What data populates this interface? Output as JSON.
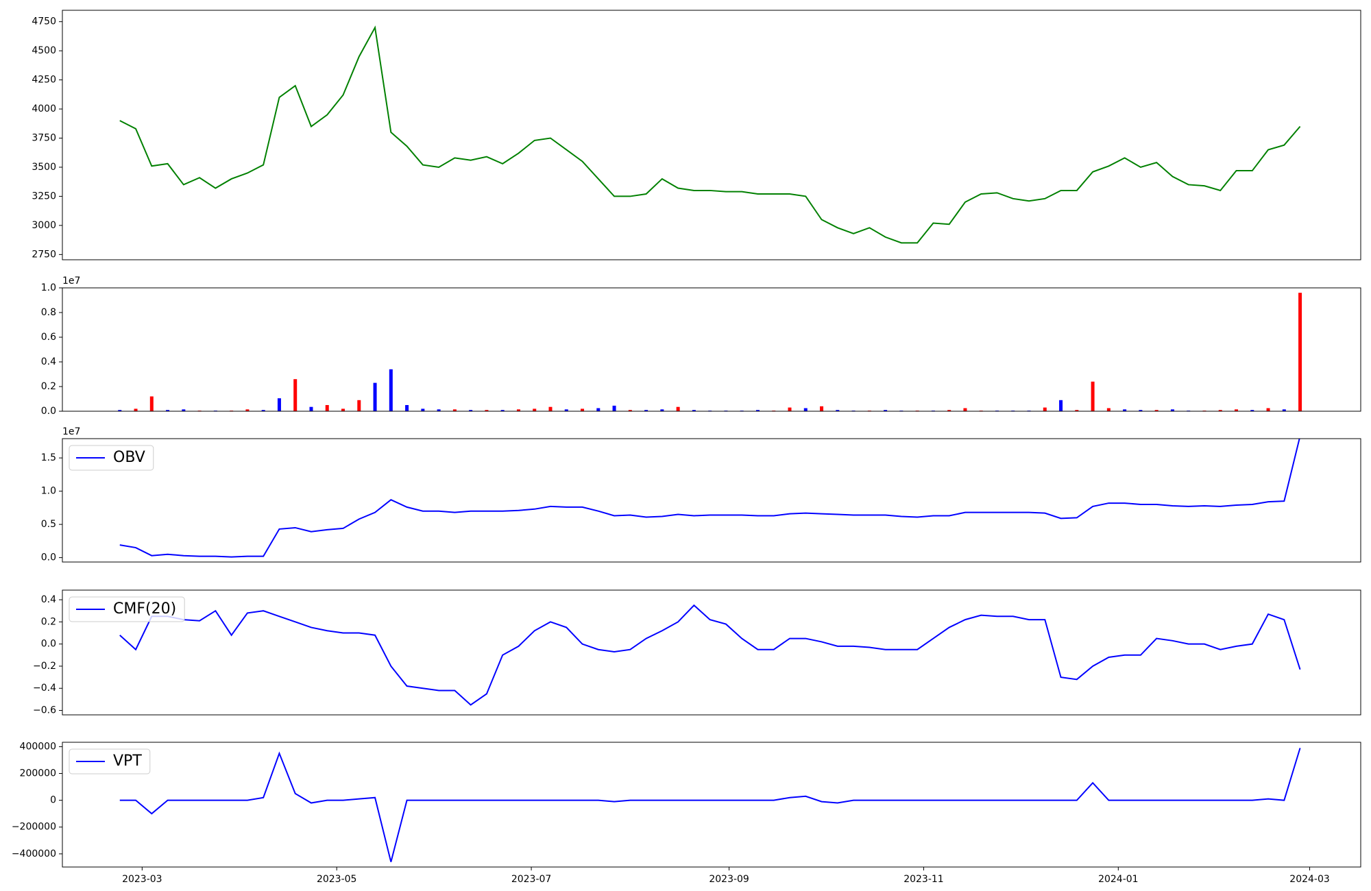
{
  "chart_data": [
    {
      "type": "line",
      "color": "green",
      "x": [
        19410,
        19415,
        19420,
        19425,
        19430,
        19435,
        19440,
        19445,
        19450,
        19455,
        19460,
        19465,
        19470,
        19475,
        19480,
        19485,
        19490,
        19495,
        19500,
        19505,
        19510,
        19515,
        19520,
        19525,
        19530,
        19535,
        19540,
        19545,
        19550,
        19555,
        19560,
        19565,
        19570,
        19575,
        19580,
        19585,
        19590,
        19595,
        19600,
        19605,
        19610,
        19615,
        19620,
        19625,
        19630,
        19635,
        19640,
        19645,
        19650,
        19655,
        19660,
        19665,
        19670,
        19675,
        19680,
        19685,
        19690,
        19695,
        19700,
        19705,
        19710,
        19715,
        19720,
        19725,
        19730,
        19735,
        19740,
        19745,
        19750,
        19755,
        19760,
        19765,
        19770,
        19775,
        19780
      ],
      "values": [
        3900,
        3830,
        3510,
        3530,
        3350,
        3410,
        3320,
        3400,
        3450,
        3520,
        4100,
        4200,
        3850,
        3950,
        4120,
        4450,
        4700,
        3800,
        3680,
        3520,
        3500,
        3580,
        3560,
        3590,
        3530,
        3620,
        3730,
        3750,
        3650,
        3550,
        3400,
        3250,
        3250,
        3270,
        3400,
        3320,
        3300,
        3300,
        3290,
        3290,
        3270,
        3270,
        3270,
        3250,
        3050,
        2980,
        2930,
        2980,
        2900,
        2850,
        2850,
        3020,
        3010,
        3200,
        3270,
        3280,
        3230,
        3210,
        3230,
        3300,
        3300,
        3460,
        3510,
        3580,
        3500,
        3540,
        3420,
        3350,
        3340,
        3300,
        3470,
        3470,
        3650,
        3690,
        3850
      ],
      "xlim": [
        19392,
        19799
      ],
      "ylim": [
        2705,
        4848
      ],
      "yticks": [
        2750,
        3000,
        3250,
        3500,
        3750,
        4000,
        4250,
        4500,
        4750
      ]
    },
    {
      "type": "bar",
      "offset_label": "1e7",
      "x": [
        19410,
        19415,
        19420,
        19425,
        19430,
        19435,
        19440,
        19445,
        19450,
        19455,
        19460,
        19465,
        19470,
        19475,
        19480,
        19485,
        19490,
        19495,
        19500,
        19505,
        19510,
        19515,
        19520,
        19525,
        19530,
        19535,
        19540,
        19545,
        19550,
        19555,
        19560,
        19565,
        19570,
        19575,
        19580,
        19585,
        19590,
        19595,
        19600,
        19605,
        19610,
        19615,
        19620,
        19625,
        19630,
        19635,
        19640,
        19645,
        19650,
        19655,
        19660,
        19665,
        19670,
        19675,
        19680,
        19685,
        19690,
        19695,
        19700,
        19705,
        19710,
        19715,
        19720,
        19725,
        19730,
        19735,
        19740,
        19745,
        19750,
        19755,
        19760,
        19765,
        19770,
        19775,
        19780
      ],
      "values": [
        100000,
        200000,
        1200000,
        100000,
        150000,
        50000,
        50000,
        50000,
        150000,
        100000,
        1050000,
        2600000,
        350000,
        500000,
        200000,
        900000,
        2300000,
        3400000,
        500000,
        200000,
        150000,
        150000,
        100000,
        100000,
        100000,
        150000,
        200000,
        350000,
        150000,
        200000,
        250000,
        450000,
        100000,
        100000,
        150000,
        350000,
        100000,
        50000,
        50000,
        50000,
        100000,
        50000,
        300000,
        250000,
        400000,
        100000,
        50000,
        50000,
        100000,
        50000,
        50000,
        50000,
        100000,
        250000,
        50000,
        50000,
        50000,
        50000,
        300000,
        900000,
        100000,
        2400000,
        250000,
        150000,
        100000,
        100000,
        150000,
        50000,
        50000,
        100000,
        150000,
        100000,
        250000,
        150000,
        9600000
      ],
      "colors": [
        "blue",
        "red",
        "red",
        "blue",
        "blue",
        "red",
        "blue",
        "red",
        "red",
        "blue",
        "blue",
        "red",
        "blue",
        "red",
        "red",
        "red",
        "blue",
        "blue",
        "blue",
        "blue",
        "blue",
        "red",
        "blue",
        "red",
        "blue",
        "red",
        "red",
        "red",
        "blue",
        "red",
        "blue",
        "blue",
        "red",
        "blue",
        "blue",
        "red",
        "blue",
        "blue",
        "blue",
        "blue",
        "blue",
        "red",
        "red",
        "blue",
        "red",
        "blue",
        "blue",
        "red",
        "blue",
        "blue",
        "red",
        "blue",
        "red",
        "red",
        "red",
        "blue",
        "blue",
        "blue",
        "red",
        "blue",
        "red",
        "red",
        "red",
        "blue",
        "blue",
        "red",
        "blue",
        "blue",
        "red",
        "red",
        "red",
        "blue",
        "red",
        "blue",
        "red"
      ],
      "xlim": [
        19392,
        19799
      ],
      "ylim": [
        0,
        10000000
      ],
      "yticks": [
        {
          "value": 0,
          "label": "0.0"
        },
        {
          "value": 2000000,
          "label": "0.2"
        },
        {
          "value": 4000000,
          "label": "0.4"
        },
        {
          "value": 6000000,
          "label": "0.6"
        },
        {
          "value": 8000000,
          "label": "0.8"
        },
        {
          "value": 10000000,
          "label": "1.0"
        }
      ]
    },
    {
      "type": "line",
      "offset_label": "1e7",
      "legend": "upper left",
      "x": [
        19410,
        19415,
        19420,
        19425,
        19430,
        19435,
        19440,
        19445,
        19450,
        19455,
        19460,
        19465,
        19470,
        19475,
        19480,
        19485,
        19490,
        19495,
        19500,
        19505,
        19510,
        19515,
        19520,
        19525,
        19530,
        19535,
        19540,
        19545,
        19550,
        19555,
        19560,
        19565,
        19570,
        19575,
        19580,
        19585,
        19590,
        19595,
        19600,
        19605,
        19610,
        19615,
        19620,
        19625,
        19630,
        19635,
        19640,
        19645,
        19650,
        19655,
        19660,
        19665,
        19670,
        19675,
        19680,
        19685,
        19690,
        19695,
        19700,
        19705,
        19710,
        19715,
        19720,
        19725,
        19730,
        19735,
        19740,
        19745,
        19750,
        19755,
        19760,
        19765,
        19770,
        19775,
        19780
      ],
      "series": [
        {
          "name": "OBV",
          "color": "blue",
          "values": [
            1900000,
            1500000,
            300000,
            500000,
            300000,
            200000,
            200000,
            100000,
            200000,
            200000,
            4300000,
            4500000,
            3900000,
            4200000,
            4400000,
            5800000,
            6800000,
            8700000,
            7600000,
            7000000,
            7000000,
            6800000,
            7000000,
            7000000,
            7000000,
            7100000,
            7300000,
            7700000,
            7600000,
            7600000,
            7000000,
            6300000,
            6400000,
            6100000,
            6200000,
            6500000,
            6300000,
            6400000,
            6400000,
            6400000,
            6300000,
            6300000,
            6600000,
            6700000,
            6600000,
            6500000,
            6400000,
            6400000,
            6400000,
            6200000,
            6100000,
            6300000,
            6300000,
            6800000,
            6800000,
            6800000,
            6800000,
            6800000,
            6700000,
            5900000,
            6000000,
            7700000,
            8200000,
            8200000,
            8000000,
            8000000,
            7800000,
            7700000,
            7800000,
            7700000,
            7900000,
            8000000,
            8400000,
            8500000,
            18300000
          ]
        }
      ],
      "xlim": [
        19392,
        19799
      ],
      "ylim": [
        -660000,
        17900000
      ],
      "yticks": [
        {
          "value": 0,
          "label": "0.0"
        },
        {
          "value": 5000000,
          "label": "0.5"
        },
        {
          "value": 10000000,
          "label": "1.0"
        },
        {
          "value": 15000000,
          "label": "1.5"
        }
      ]
    },
    {
      "type": "line",
      "legend": "upper left",
      "x": [
        19410,
        19415,
        19420,
        19425,
        19430,
        19435,
        19440,
        19445,
        19450,
        19455,
        19460,
        19465,
        19470,
        19475,
        19480,
        19485,
        19490,
        19495,
        19500,
        19505,
        19510,
        19515,
        19520,
        19525,
        19530,
        19535,
        19540,
        19545,
        19550,
        19555,
        19560,
        19565,
        19570,
        19575,
        19580,
        19585,
        19590,
        19595,
        19600,
        19605,
        19610,
        19615,
        19620,
        19625,
        19630,
        19635,
        19640,
        19645,
        19650,
        19655,
        19660,
        19665,
        19670,
        19675,
        19680,
        19685,
        19690,
        19695,
        19700,
        19705,
        19710,
        19715,
        19720,
        19725,
        19730,
        19735,
        19740,
        19745,
        19750,
        19755,
        19760,
        19765,
        19770,
        19775,
        19780
      ],
      "series": [
        {
          "name": "CMF(20)",
          "color": "blue",
          "values": [
            0.08,
            -0.05,
            0.25,
            0.25,
            0.22,
            0.21,
            0.3,
            0.08,
            0.28,
            0.3,
            0.25,
            0.2,
            0.15,
            0.12,
            0.1,
            0.1,
            0.08,
            -0.2,
            -0.38,
            -0.4,
            -0.42,
            -0.42,
            -0.55,
            -0.45,
            -0.1,
            -0.02,
            0.12,
            0.2,
            0.15,
            0,
            -0.05,
            -0.07,
            -0.05,
            0.05,
            0.12,
            0.2,
            0.35,
            0.22,
            0.18,
            0.05,
            -0.05,
            -0.05,
            0.05,
            0.05,
            0.02,
            -0.02,
            -0.02,
            -0.03,
            -0.05,
            -0.05,
            -0.05,
            0.05,
            0.15,
            0.22,
            0.26,
            0.25,
            0.25,
            0.22,
            0.22,
            -0.3,
            -0.32,
            -0.2,
            -0.12,
            -0.1,
            -0.1,
            0.05,
            0.03,
            0,
            0,
            -0.05,
            -0.02,
            0,
            0.27,
            0.22,
            -0.23
          ]
        }
      ],
      "xlim": [
        19392,
        19799
      ],
      "ylim": [
        -0.64,
        0.487
      ],
      "yticks": [
        {
          "value": -0.6,
          "label": "−0.6"
        },
        {
          "value": -0.4,
          "label": "−0.4"
        },
        {
          "value": -0.2,
          "label": "−0.2"
        },
        {
          "value": 0,
          "label": "0.0"
        },
        0.2,
        0.4
      ]
    },
    {
      "type": "line",
      "legend": "upper left",
      "x": [
        19410,
        19415,
        19420,
        19425,
        19430,
        19435,
        19440,
        19445,
        19450,
        19455,
        19460,
        19465,
        19470,
        19475,
        19480,
        19485,
        19490,
        19495,
        19500,
        19505,
        19510,
        19515,
        19520,
        19525,
        19530,
        19535,
        19540,
        19545,
        19550,
        19555,
        19560,
        19565,
        19570,
        19575,
        19580,
        19585,
        19590,
        19595,
        19600,
        19605,
        19610,
        19615,
        19620,
        19625,
        19630,
        19635,
        19640,
        19645,
        19650,
        19655,
        19660,
        19665,
        19670,
        19675,
        19680,
        19685,
        19690,
        19695,
        19700,
        19705,
        19710,
        19715,
        19720,
        19725,
        19730,
        19735,
        19740,
        19745,
        19750,
        19755,
        19760,
        19765,
        19770,
        19775,
        19780
      ],
      "series": [
        {
          "name": "VPT",
          "color": "blue",
          "values": [
            0,
            0,
            -100000,
            0,
            0,
            0,
            0,
            0,
            0,
            20000,
            350000,
            50000,
            -20000,
            0,
            0,
            10000,
            20000,
            -460000,
            0,
            0,
            0,
            0,
            0,
            0,
            0,
            0,
            0,
            0,
            0,
            0,
            0,
            -10000,
            0,
            0,
            0,
            0,
            0,
            0,
            0,
            0,
            0,
            0,
            20000,
            30000,
            -10000,
            -20000,
            0,
            0,
            0,
            0,
            0,
            0,
            0,
            0,
            0,
            0,
            0,
            0,
            0,
            0,
            0,
            130000,
            0,
            0,
            0,
            0,
            0,
            0,
            0,
            0,
            0,
            0,
            10000,
            0,
            390000
          ]
        }
      ],
      "xlim": [
        19392,
        19799
      ],
      "ylim": [
        -498000,
        432800
      ],
      "yticks": [
        {
          "value": -400000,
          "label": "−400000"
        },
        {
          "value": -200000,
          "label": "−200000"
        },
        0,
        200000,
        400000
      ],
      "xticks": [
        {
          "value": 19417,
          "label": "2023-03"
        },
        {
          "value": 19478,
          "label": "2023-05"
        },
        {
          "value": 19539,
          "label": "2023-07"
        },
        {
          "value": 19601,
          "label": "2023-09"
        },
        {
          "value": 19662,
          "label": "2023-11"
        },
        {
          "value": 19723,
          "label": "2024-01"
        },
        {
          "value": 19783,
          "label": "2024-03"
        }
      ]
    }
  ]
}
